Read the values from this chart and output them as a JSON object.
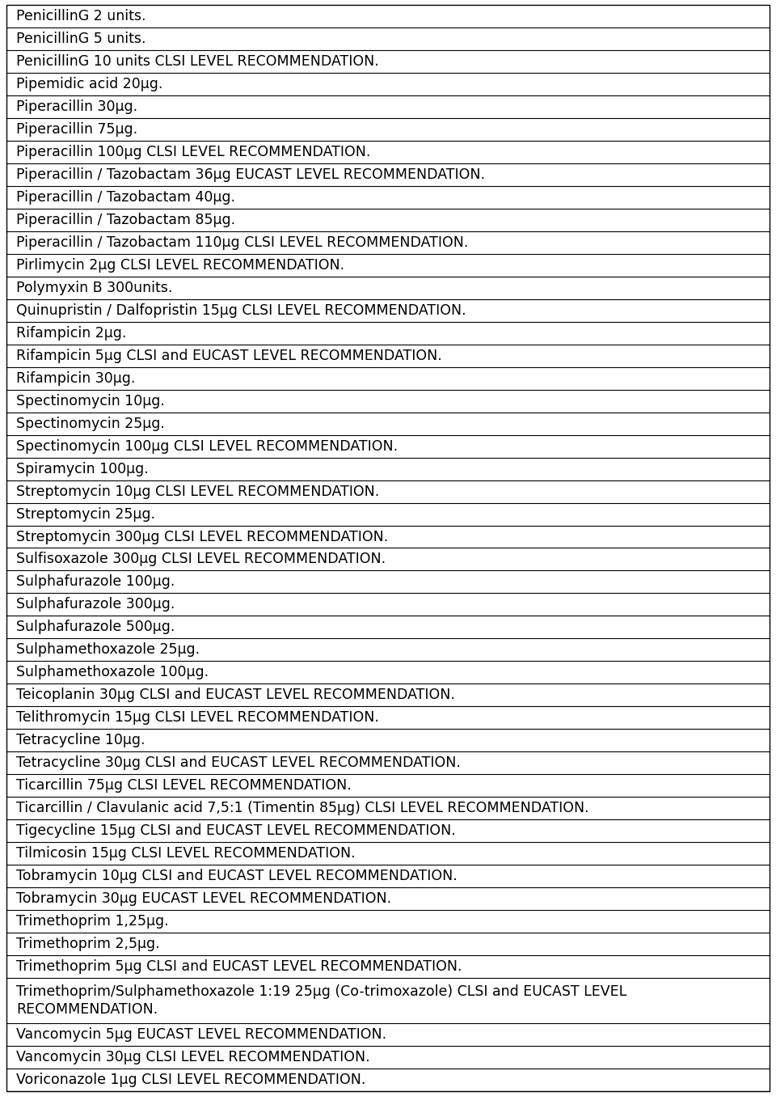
{
  "rows": [
    "PenicillinG 2 units.",
    "PenicillinG 5 units.",
    "PenicillinG 10 units CLSI LEVEL RECOMMENDATION.",
    "Pipemidic acid 20μg.",
    "Piperacillin 30μg.",
    "Piperacillin 75μg.",
    "Piperacillin 100μg CLSI LEVEL RECOMMENDATION.",
    "Piperacillin / Tazobactam 36μg EUCAST LEVEL RECOMMENDATION.",
    "Piperacillin / Tazobactam 40μg.",
    "Piperacillin / Tazobactam 85μg.",
    "Piperacillin / Tazobactam 110μg CLSI LEVEL RECOMMENDATION.",
    "Pirlimycin 2μg CLSI LEVEL RECOMMENDATION.",
    "Polymyxin B 300units.",
    "Quinupristin / Dalfopristin 15μg CLSI LEVEL RECOMMENDATION.",
    "Rifampicin 2μg.",
    "Rifampicin 5μg CLSI and EUCAST LEVEL RECOMMENDATION.",
    "Rifampicin 30μg.",
    "Spectinomycin 10μg.",
    "Spectinomycin 25μg.",
    "Spectinomycin 100μg CLSI LEVEL RECOMMENDATION.",
    "Spiramycin 100μg.",
    "Streptomycin 10μg CLSI LEVEL RECOMMENDATION.",
    "Streptomycin 25μg.",
    "Streptomycin 300μg CLSI LEVEL RECOMMENDATION.",
    "Sulfisoxazole 300μg CLSI LEVEL RECOMMENDATION.",
    "Sulphafurazole 100μg.",
    "Sulphafurazole 300μg.",
    "Sulphafurazole 500μg.",
    "Sulphamethoxazole 25μg.",
    "Sulphamethoxazole 100μg.",
    "Teicoplanin 30μg CLSI and EUCAST LEVEL RECOMMENDATION.",
    "Telithromycin 15μg CLSI LEVEL RECOMMENDATION.",
    "Tetracycline 10μg.",
    "Tetracycline 30μg CLSI and EUCAST LEVEL RECOMMENDATION.",
    "Ticarcillin 75μg CLSI LEVEL RECOMMENDATION.",
    "Ticarcillin / Clavulanic acid 7,5:1 (Timentin 85μg) CLSI LEVEL RECOMMENDATION.",
    "Tigecycline 15μg CLSI and EUCAST LEVEL RECOMMENDATION.",
    "Tilmicosin 15μg CLSI LEVEL RECOMMENDATION.",
    "Tobramycin 10μg CLSI and EUCAST LEVEL RECOMMENDATION.",
    "Tobramycin 30μg EUCAST LEVEL RECOMMENDATION.",
    "Trimethoprim 1,25μg.",
    "Trimethoprim 2,5μg.",
    "Trimethoprim 5μg CLSI and EUCAST LEVEL RECOMMENDATION.",
    "Trimethoprim/Sulphamethoxazole 1:19 25μg (Co-trimoxazole) CLSI and EUCAST LEVEL\nRECOMMENDATION.",
    "Vancomycin 5μg EUCAST LEVEL RECOMMENDATION.",
    "Vancomycin 30μg CLSI LEVEL RECOMMENDATION.",
    "Voriconazole 1μg CLSI LEVEL RECOMMENDATION."
  ],
  "bg_color": "#ffffff",
  "text_color": "#000000",
  "border_color": "#000000",
  "font_size": 12.5,
  "double_row_index": 43
}
